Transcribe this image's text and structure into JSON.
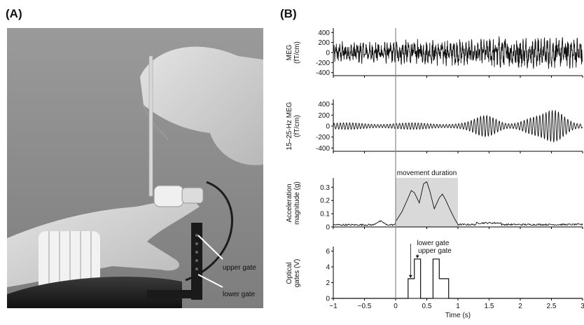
{
  "panels": {
    "a": "(A)",
    "b": "(B)"
  },
  "photo": {
    "upper_gate_label": "upper gate",
    "lower_gate_label": "lower gate"
  },
  "chart_data": [
    {
      "type": "line",
      "ylabel": [
        "MEG",
        "(fT/cm)"
      ],
      "yticks": [
        400,
        200,
        0,
        -200,
        -400
      ],
      "ylim": [
        -460,
        460
      ],
      "xlim": [
        -1,
        3
      ],
      "series": [
        {
          "amplitude_before_0": 180,
          "amplitude_after_0": 210,
          "amplitude_after_1_5": 260
        }
      ]
    },
    {
      "type": "line",
      "ylabel": [
        "15–25-Hz MEG",
        "(fT/cm)"
      ],
      "yticks": [
        400,
        200,
        0,
        -200,
        -400
      ],
      "ylim": [
        -460,
        460
      ],
      "xlim": [
        -1,
        3
      ],
      "series": [
        {
          "bursts": [
            {
              "x": 1.45,
              "amp": 140
            },
            {
              "x": 2.55,
              "amp": 230
            },
            {
              "x": 2.2,
              "amp": 90
            }
          ]
        }
      ]
    },
    {
      "type": "line",
      "ylabel": [
        "Acceleration",
        "magnitude (g)"
      ],
      "yticks": [
        0.3,
        0.2,
        0.1,
        0
      ],
      "ylim": [
        0,
        0.36
      ],
      "xlim": [
        -1,
        3
      ],
      "annotation": "movement duration",
      "shaded_range": [
        0,
        1
      ],
      "series": [
        {
          "x": [
            0,
            0.1,
            0.2,
            0.25,
            0.3,
            0.38,
            0.45,
            0.5,
            0.55,
            0.62,
            0.7,
            0.75,
            0.8,
            0.88,
            0.95,
            1.0
          ],
          "y": [
            0.04,
            0.12,
            0.22,
            0.28,
            0.26,
            0.18,
            0.32,
            0.34,
            0.27,
            0.14,
            0.22,
            0.25,
            0.2,
            0.12,
            0.06,
            0.02
          ]
        }
      ]
    },
    {
      "type": "line",
      "ylabel": [
        "Optical",
        "gates (V)"
      ],
      "yticks": [
        6,
        4,
        2,
        0
      ],
      "ylim": [
        0,
        6.4
      ],
      "xlim": [
        -1,
        3
      ],
      "xticks": [
        -1,
        -0.5,
        0,
        0.5,
        1,
        1.5,
        2,
        2.5,
        3
      ],
      "xticklabels": [
        "−1",
        "−0.5",
        "0",
        "0.5",
        "1",
        "1.5",
        "2",
        "2.5",
        "3"
      ],
      "xlabel": "Time (s)",
      "annotations": [
        "lower gate",
        "upper gate"
      ],
      "series": [
        {
          "x": [
            -1,
            0.2,
            0.2,
            0.3,
            0.3,
            0.4,
            0.4,
            0.6,
            0.6,
            0.7,
            0.7,
            0.85,
            0.85,
            3
          ],
          "y": [
            0,
            0,
            2.5,
            2.5,
            5,
            5,
            0,
            0,
            5,
            5,
            2.5,
            2.5,
            0,
            0
          ]
        }
      ]
    }
  ]
}
